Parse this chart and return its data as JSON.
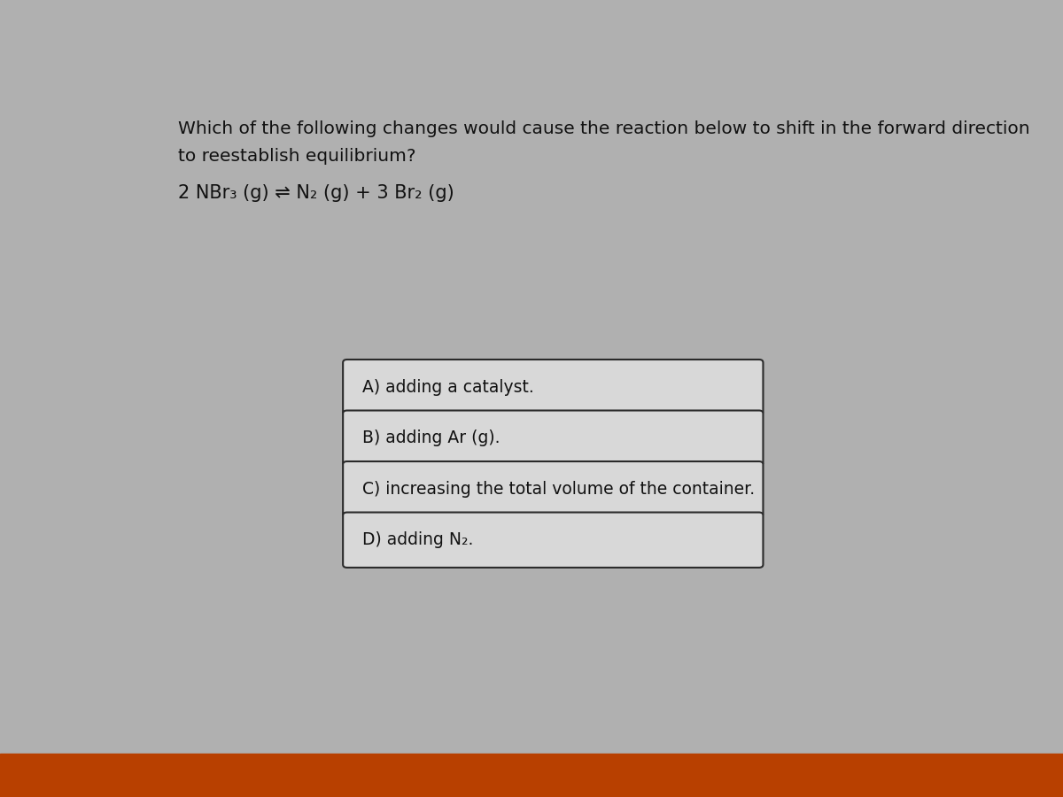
{
  "title_line1": "Which of the following changes would cause the reaction below to shift in the forward direction",
  "title_line2": "to reestablish equilibrium?",
  "reaction": "2 NBr₃ (g) ⇌ N₂ (g) + 3 Br₂ (g)",
  "options": [
    "A) adding a catalyst.",
    "B) adding Ar (g).",
    "C) increasing the total volume of the container.",
    "D) adding N₂."
  ],
  "bg_color": "#b0b0b0",
  "box_bg_color": "#d8d8d8",
  "box_border_color": "#2a2a2a",
  "text_color": "#111111",
  "title_fontsize": 14.5,
  "reaction_fontsize": 15,
  "option_fontsize": 13.5,
  "bottom_bar_color": "#b84000",
  "bottom_bar_height": 0.055
}
